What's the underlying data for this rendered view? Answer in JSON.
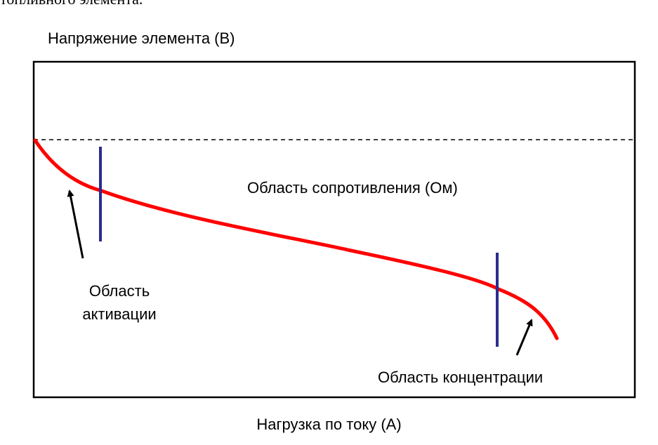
{
  "document": {
    "caption_fragment": "топливного элемента."
  },
  "chart_data": {
    "type": "line",
    "title": "",
    "ylabel": "Напряжение элемента (В)",
    "xlabel": "Нагрузка по току (А)",
    "grid": false,
    "colors": {
      "curve": "#ff0000",
      "boundary": "#2b2b8f",
      "reference": "#000000",
      "frame": "#000000"
    },
    "annotations": {
      "activation": [
        "Область",
        "активации"
      ],
      "ohmic": "Область сопротивления (Ом)",
      "concentration": "Область концентрации"
    }
  }
}
